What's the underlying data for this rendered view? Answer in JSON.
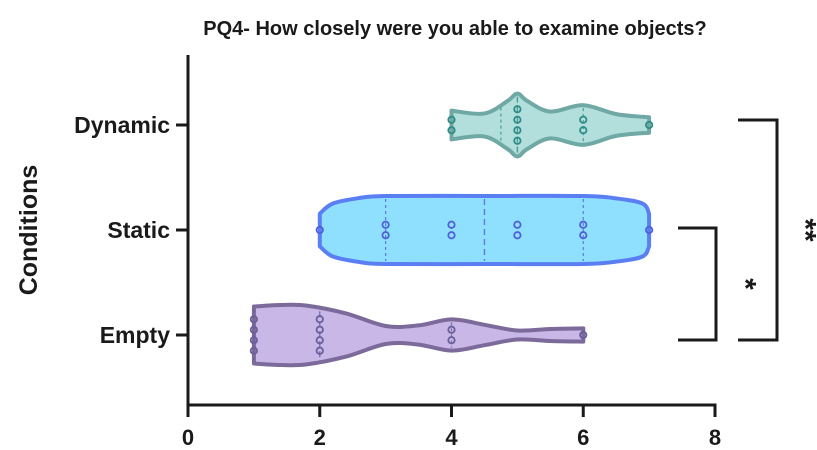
{
  "chart_data": {
    "type": "violin",
    "title": "PQ4- How closely were you able to examine objects?",
    "xlabel": "",
    "ylabel": "Conditions",
    "xlim": [
      0,
      8
    ],
    "x_ticks": [
      0,
      2,
      4,
      6,
      8
    ],
    "grid": false,
    "orientation": "horizontal",
    "categories": [
      "Dynamic",
      "Static",
      "Empty"
    ],
    "series": [
      {
        "category": "Dynamic",
        "fill": "#b2dfdc",
        "stroke": "#6fa8a4",
        "point_color": "#2f8c86",
        "range": [
          4,
          7
        ],
        "median": 5,
        "quartiles": [
          4.75,
          6
        ],
        "points": [
          4,
          4,
          5,
          5,
          5,
          5,
          6,
          6,
          7
        ],
        "density": [
          [
            4.0,
            0.45
          ],
          [
            4.5,
            0.36
          ],
          [
            4.85,
            0.75
          ],
          [
            5.0,
            0.98
          ],
          [
            5.15,
            0.75
          ],
          [
            5.5,
            0.42
          ],
          [
            6.0,
            0.62
          ],
          [
            6.5,
            0.34
          ],
          [
            7.0,
            0.24
          ]
        ]
      },
      {
        "category": "Static",
        "fill": "#8fe0ff",
        "stroke": "#5a7ff2",
        "point_color": "#5060d8",
        "range": [
          2,
          7
        ],
        "median": 4.5,
        "quartiles": [
          3,
          6
        ],
        "points": [
          2,
          3,
          3,
          4,
          4,
          5,
          5,
          6,
          6,
          7
        ],
        "density": [
          [
            2.0,
            0.48
          ],
          [
            2.2,
            0.78
          ],
          [
            2.6,
            0.94
          ],
          [
            3.0,
            1.0
          ],
          [
            4.5,
            1.0
          ],
          [
            6.0,
            1.0
          ],
          [
            6.5,
            0.93
          ],
          [
            6.9,
            0.78
          ],
          [
            7.0,
            0.48
          ]
        ]
      },
      {
        "category": "Empty",
        "fill": "#c9b7e8",
        "stroke": "#7b6a9a",
        "point_color": "#6a5f9a",
        "range": [
          1,
          6
        ],
        "median": 2,
        "quartiles": [
          1,
          4
        ],
        "points": [
          1,
          1,
          1,
          1,
          2,
          2,
          2,
          2,
          4,
          4,
          6
        ],
        "density": [
          [
            1.0,
            0.95
          ],
          [
            1.4,
            1.0
          ],
          [
            1.8,
            0.98
          ],
          [
            2.4,
            0.72
          ],
          [
            3.0,
            0.3
          ],
          [
            3.5,
            0.32
          ],
          [
            4.0,
            0.52
          ],
          [
            4.5,
            0.34
          ],
          [
            5.0,
            0.15
          ],
          [
            5.5,
            0.2
          ],
          [
            6.0,
            0.22
          ]
        ]
      }
    ],
    "significance": [
      {
        "groups": [
          "Static",
          "Empty"
        ],
        "label": "*"
      },
      {
        "groups": [
          "Dynamic",
          "Empty"
        ],
        "label": "**"
      }
    ]
  }
}
